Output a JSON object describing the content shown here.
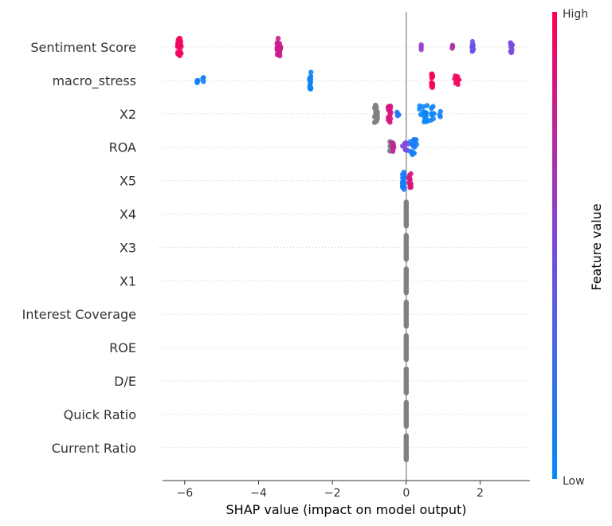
{
  "chart_data": {
    "type": "scatter",
    "subtype": "shap-beeswarm",
    "title": "",
    "xlabel": "SHAP value (impact on model output)",
    "ylabel": "",
    "xlim": [
      -6.6,
      3.35
    ],
    "xticks": [
      -6,
      -4,
      -2,
      0,
      2
    ],
    "xtick_labels": [
      "−6",
      "−4",
      "−2",
      "0",
      "2"
    ],
    "grid": false,
    "colorbar": {
      "label": "Feature value",
      "high_label": "High",
      "low_label": "Low",
      "low_color": "#008bfb",
      "high_color": "#ff0052"
    },
    "neutral_color": "#808080",
    "features": [
      {
        "name": "Sentiment Score",
        "clusters": [
          {
            "x": -6.15,
            "spread": 0.06,
            "n": 34,
            "v": 0.95
          },
          {
            "x": -3.45,
            "spread": 0.05,
            "n": 30,
            "v": 0.8
          },
          {
            "x": 0.4,
            "spread": 0.02,
            "n": 3,
            "v": 0.6
          },
          {
            "x": 1.25,
            "spread": 0.02,
            "n": 3,
            "v": 0.7
          },
          {
            "x": 1.8,
            "spread": 0.02,
            "n": 10,
            "v": 0.45
          },
          {
            "x": 2.85,
            "spread": 0.03,
            "n": 10,
            "v": 0.5
          }
        ]
      },
      {
        "name": "macro_stress",
        "clusters": [
          {
            "x": -5.65,
            "spread": 0.03,
            "n": 4,
            "v": 0.1
          },
          {
            "x": -5.5,
            "spread": 0.02,
            "n": 3,
            "v": 0.1
          },
          {
            "x": -2.6,
            "spread": 0.02,
            "n": 20,
            "v": 0.05
          },
          {
            "x": 0.7,
            "spread": 0.02,
            "n": 16,
            "v": 0.97
          },
          {
            "x": 1.38,
            "spread": 0.08,
            "n": 8,
            "v": 0.95
          }
        ]
      },
      {
        "name": "X2",
        "clusters": [
          {
            "x": -0.82,
            "spread": 0.04,
            "n": 30,
            "neutral": true
          },
          {
            "x": -0.45,
            "spread": 0.04,
            "n": 20,
            "v": 0.85
          },
          {
            "x": -0.22,
            "spread": 0.03,
            "n": 4,
            "v": 0.15
          },
          {
            "x": 0.55,
            "spread": 0.22,
            "n": 24,
            "v": 0.05
          },
          {
            "x": 0.9,
            "spread": 0.03,
            "n": 3,
            "v": 0.1
          }
        ]
      },
      {
        "name": "ROA",
        "clusters": [
          {
            "x": -0.4,
            "spread": 0.06,
            "n": 10,
            "neutral": true
          },
          {
            "x": -0.38,
            "spread": 0.05,
            "n": 8,
            "v": 0.75
          },
          {
            "x": -0.02,
            "spread": 0.08,
            "n": 8,
            "v": 0.5
          },
          {
            "x": 0.2,
            "spread": 0.1,
            "n": 16,
            "v": 0.1
          }
        ]
      },
      {
        "name": "X5",
        "clusters": [
          {
            "x": -0.08,
            "spread": 0.03,
            "n": 20,
            "v": 0.1
          },
          {
            "x": 0.1,
            "spread": 0.03,
            "n": 14,
            "v": 0.85
          }
        ]
      },
      {
        "name": "X4",
        "clusters": [
          {
            "x": 0.0,
            "spread": 0.005,
            "n": 26,
            "neutral": true
          }
        ]
      },
      {
        "name": "X3",
        "clusters": [
          {
            "x": 0.0,
            "spread": 0.005,
            "n": 26,
            "neutral": true
          }
        ]
      },
      {
        "name": "X1",
        "clusters": [
          {
            "x": 0.0,
            "spread": 0.005,
            "n": 26,
            "neutral": true
          }
        ]
      },
      {
        "name": "Interest Coverage",
        "clusters": [
          {
            "x": 0.0,
            "spread": 0.005,
            "n": 26,
            "neutral": true
          }
        ]
      },
      {
        "name": "ROE",
        "clusters": [
          {
            "x": 0.0,
            "spread": 0.005,
            "n": 26,
            "neutral": true
          }
        ]
      },
      {
        "name": "D/E",
        "clusters": [
          {
            "x": 0.0,
            "spread": 0.005,
            "n": 26,
            "neutral": true
          }
        ]
      },
      {
        "name": "Quick Ratio",
        "clusters": [
          {
            "x": 0.0,
            "spread": 0.005,
            "n": 26,
            "neutral": true
          }
        ]
      },
      {
        "name": "Current Ratio",
        "clusters": [
          {
            "x": 0.0,
            "spread": 0.005,
            "n": 26,
            "neutral": true
          }
        ]
      }
    ]
  }
}
